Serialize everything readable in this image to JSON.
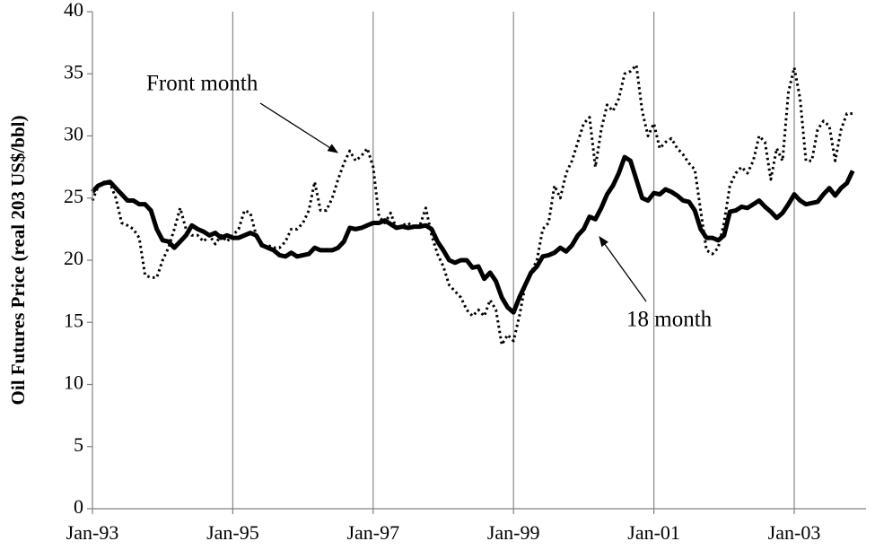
{
  "chart_data": {
    "type": "line",
    "y_axis_label": "Oil Futures Price (real 203 US$/bbl)",
    "annotations": [
      "Front month",
      "18 month"
    ],
    "categories": [
      "Jan-93",
      null,
      null,
      null,
      null,
      null,
      null,
      null,
      null,
      null,
      null,
      null,
      null,
      null,
      null,
      null,
      null,
      null,
      null,
      null,
      null,
      null,
      null,
      null,
      "Jan-95",
      null,
      null,
      null,
      null,
      null,
      null,
      null,
      null,
      null,
      null,
      null,
      null,
      null,
      null,
      null,
      null,
      null,
      null,
      null,
      null,
      null,
      null,
      null,
      "Jan-97",
      null,
      null,
      null,
      null,
      null,
      null,
      null,
      null,
      null,
      null,
      null,
      null,
      null,
      null,
      null,
      null,
      null,
      null,
      null,
      null,
      null,
      null,
      null,
      "Jan-99",
      null,
      null,
      null,
      null,
      null,
      null,
      null,
      null,
      null,
      null,
      null,
      null,
      null,
      null,
      null,
      null,
      null,
      null,
      null,
      null,
      null,
      null,
      null,
      "Jan-01",
      null,
      null,
      null,
      null,
      null,
      null,
      null,
      null,
      null,
      null,
      null,
      null,
      null,
      null,
      null,
      null,
      null,
      null,
      null,
      null,
      null,
      null,
      null,
      "Jan-03",
      null,
      null,
      null,
      null,
      null,
      null,
      null,
      null,
      null,
      null
    ],
    "series": [
      {
        "name": "Front month",
        "color": "#000000",
        "style": "dotted",
        "values": [
          24.8,
          26.0,
          26.3,
          26.2,
          25.0,
          23.0,
          22.8,
          22.5,
          21.8,
          18.8,
          18.6,
          18.6,
          20.0,
          21.0,
          22.5,
          24.2,
          22.5,
          22.0,
          22.0,
          21.5,
          22.0,
          21.3,
          22.0,
          21.5,
          22.0,
          22.5,
          24.0,
          23.8,
          22.0,
          21.0,
          21.2,
          21.0,
          21.0,
          21.5,
          22.5,
          22.5,
          23.0,
          24.0,
          26.3,
          24.0,
          24.0,
          25.0,
          26.5,
          27.8,
          28.8,
          28.0,
          28.4,
          29.0,
          27.5,
          23.5,
          23.0,
          23.8,
          22.5,
          22.8,
          23.0,
          22.5,
          22.8,
          24.2,
          22.0,
          20.5,
          19.5,
          18.0,
          17.5,
          17.0,
          16.0,
          15.5,
          16.0,
          15.5,
          16.8,
          16.0,
          13.2,
          14.0,
          13.5,
          15.5,
          18.0,
          19.0,
          20.0,
          22.5,
          23.0,
          26.0,
          25.0,
          27.0,
          28.0,
          29.5,
          31.0,
          31.5,
          27.5,
          30.5,
          32.5,
          32.0,
          33.0,
          35.0,
          35.2,
          35.7,
          32.0,
          30.0,
          31.0,
          29.0,
          29.5,
          29.8,
          29.0,
          28.5,
          27.8,
          27.3,
          24.0,
          20.8,
          20.5,
          21.0,
          23.0,
          26.0,
          27.0,
          27.5,
          27.0,
          28.0,
          30.0,
          29.5,
          26.5,
          29.0,
          28.0,
          33.5,
          35.5,
          33.0,
          28.0,
          28.0,
          30.5,
          31.2,
          30.8,
          28.0,
          30.5,
          31.8,
          31.8
        ]
      },
      {
        "name": "18 month",
        "color": "#000000",
        "style": "solid",
        "values": [
          25.5,
          26.0,
          26.2,
          26.3,
          25.8,
          25.3,
          24.8,
          24.8,
          24.5,
          24.5,
          24.0,
          22.5,
          21.6,
          21.5,
          21.0,
          21.5,
          22.0,
          22.8,
          22.5,
          22.3,
          22.0,
          22.2,
          21.8,
          22.0,
          21.8,
          21.8,
          22.0,
          22.2,
          22.0,
          21.2,
          21.0,
          20.8,
          20.4,
          20.3,
          20.6,
          20.3,
          20.4,
          20.5,
          21.0,
          20.8,
          20.8,
          20.8,
          21.0,
          21.5,
          22.6,
          22.5,
          22.6,
          22.8,
          23.0,
          23.0,
          23.2,
          22.9,
          22.6,
          22.7,
          22.6,
          22.7,
          22.7,
          22.8,
          22.5,
          21.5,
          20.8,
          20.0,
          19.8,
          20.0,
          20.0,
          19.4,
          19.5,
          18.5,
          19.0,
          18.3,
          17.0,
          16.2,
          15.8,
          17.0,
          18.0,
          19.0,
          19.5,
          20.3,
          20.4,
          20.6,
          21.0,
          20.7,
          21.2,
          22.0,
          22.5,
          23.5,
          23.3,
          24.2,
          25.3,
          26.0,
          27.0,
          28.3,
          28.0,
          26.5,
          25.0,
          24.8,
          25.4,
          25.3,
          25.7,
          25.5,
          25.2,
          24.8,
          24.7,
          24.0,
          22.5,
          21.8,
          21.8,
          21.6,
          22.0,
          23.9,
          24.0,
          24.3,
          24.2,
          24.5,
          24.8,
          24.3,
          23.9,
          23.4,
          23.8,
          24.5,
          25.3,
          24.8,
          24.5,
          24.6,
          24.7,
          25.3,
          25.8,
          25.2,
          25.8,
          26.2,
          27.2
        ]
      }
    ],
    "ylim": [
      0,
      40
    ],
    "yticks": [
      0,
      5,
      10,
      15,
      20,
      25,
      30,
      35,
      40
    ],
    "grid": "x"
  }
}
